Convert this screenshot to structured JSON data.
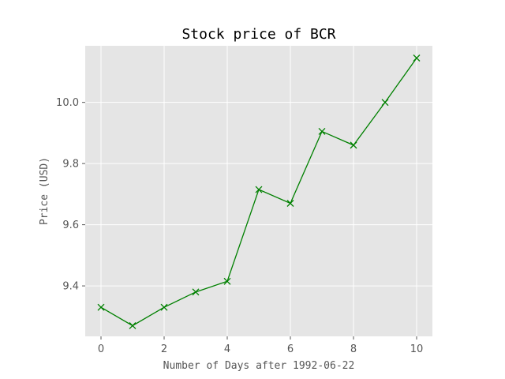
{
  "chart_data": {
    "type": "line",
    "title": "Stock price of BCR",
    "xlabel": "Number of Days after 1992-06-22",
    "ylabel": "Price (USD)",
    "x": [
      0,
      1,
      2,
      3,
      4,
      5,
      6,
      7,
      8,
      9,
      10
    ],
    "series": [
      {
        "values": [
          9.33,
          9.27,
          9.33,
          9.38,
          9.415,
          9.715,
          9.67,
          9.905,
          9.86,
          10.0,
          10.145
        ],
        "color": "#008000",
        "marker": "x"
      }
    ],
    "xlim": [
      -0.5,
      10.5
    ],
    "ylim": [
      9.235,
      10.185
    ],
    "xticks": [
      0,
      2,
      4,
      6,
      8,
      10
    ],
    "xtick_labels": [
      "0",
      "2",
      "4",
      "6",
      "8",
      "10"
    ],
    "yticks": [
      9.4,
      9.6,
      9.8,
      10.0
    ],
    "ytick_labels": [
      "9.4",
      "9.6",
      "9.8",
      "10.0"
    ],
    "grid": true,
    "style": "ggplot",
    "background_color": "#e5e5e5",
    "grid_color": "#ffffff"
  }
}
